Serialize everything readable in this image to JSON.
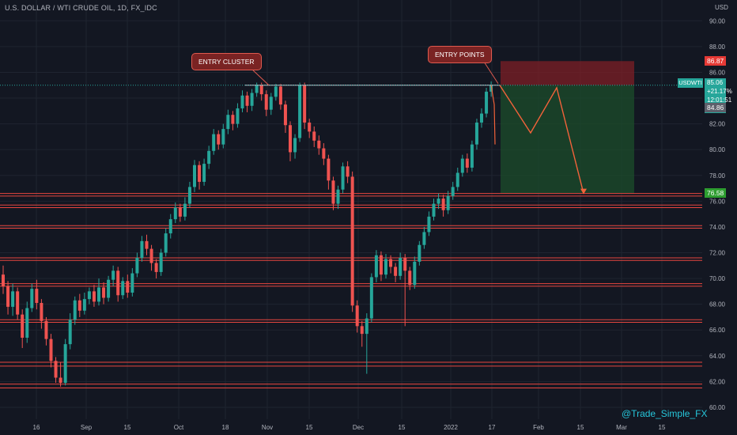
{
  "header": {
    "symbol": "U.S. DOLLAR / WTI CRUDE OIL, 1D, FX_IDC",
    "currency": "USD"
  },
  "annotations": {
    "entry_cluster": "ENTRY CLUSTER",
    "entry_points": "ENTRY POINTS"
  },
  "price_tags": {
    "stop": "86.87",
    "target": "76.58",
    "bid": "84.86"
  },
  "current_price": {
    "symbol": "USDWTI",
    "price": "85.06",
    "change": "+21.17%",
    "countdown": "12:01:51"
  },
  "watermark": "@Trade_Simple_FX",
  "colors": {
    "up": "#26a69a",
    "down": "#ef5350",
    "level_line": "#e8463f",
    "stop_zone": "#7e1f25",
    "target_zone": "#1b4a2a",
    "projection": "#f2623a",
    "background": "#131722"
  },
  "chart_data": {
    "type": "candlestick",
    "title": "U.S. DOLLAR / WTI CRUDE OIL, 1D, FX_IDC",
    "ylim": [
      59.2,
      91.0
    ],
    "y_ticks": [
      60,
      62,
      64,
      66,
      68,
      70,
      72,
      74,
      76,
      78,
      80,
      82,
      84,
      86,
      88,
      90
    ],
    "x_ticks": [
      "16",
      "Sep",
      "15",
      "Oct",
      "18",
      "Nov",
      "15",
      "Dec",
      "15",
      "2022",
      "17",
      "Feb",
      "15",
      "Mar",
      "15"
    ],
    "grid": true,
    "support_resistance_levels": [
      76.6,
      76.4,
      75.7,
      75.5,
      74.1,
      73.9,
      71.6,
      71.4,
      69.6,
      69.4,
      66.8,
      66.6,
      63.5,
      63.2,
      61.8,
      61.5
    ],
    "entry_cluster_level": 85.0,
    "trade_setup": {
      "entry": 85.0,
      "stop": 86.87,
      "target": 76.58
    },
    "projection_path": [
      85.0,
      81.3,
      84.8,
      76.6
    ],
    "candles": [
      [
        70.3,
        69.4,
        71.0,
        68.8
      ],
      [
        69.4,
        67.8,
        69.8,
        67.2
      ],
      [
        67.8,
        69.0,
        69.6,
        67.1
      ],
      [
        69.0,
        67.2,
        69.3,
        66.8
      ],
      [
        67.2,
        65.4,
        67.6,
        64.6
      ],
      [
        65.4,
        67.7,
        68.2,
        65.0
      ],
      [
        67.7,
        69.2,
        69.6,
        67.4
      ],
      [
        69.2,
        68.1,
        69.9,
        67.6
      ],
      [
        68.1,
        66.7,
        68.4,
        66.1
      ],
      [
        66.7,
        65.3,
        67.0,
        64.8
      ],
      [
        65.3,
        63.6,
        65.7,
        63.1
      ],
      [
        63.6,
        62.3,
        63.9,
        61.9
      ],
      [
        62.3,
        61.9,
        63.5,
        61.6
      ],
      [
        61.9,
        64.9,
        65.3,
        61.7
      ],
      [
        64.9,
        66.8,
        67.3,
        64.5
      ],
      [
        66.8,
        68.3,
        68.6,
        66.4
      ],
      [
        68.3,
        67.5,
        68.8,
        67.0
      ],
      [
        67.5,
        68.4,
        68.9,
        67.2
      ],
      [
        68.4,
        69.0,
        69.3,
        68.0
      ],
      [
        69.0,
        68.2,
        69.5,
        67.8
      ],
      [
        68.2,
        69.3,
        70.0,
        67.9
      ],
      [
        69.3,
        68.5,
        69.7,
        68.0
      ],
      [
        68.5,
        69.9,
        70.2,
        68.2
      ],
      [
        69.9,
        70.6,
        71.0,
        69.4
      ],
      [
        70.6,
        68.7,
        70.9,
        68.2
      ],
      [
        68.7,
        69.8,
        70.1,
        68.4
      ],
      [
        69.8,
        68.9,
        70.3,
        68.5
      ],
      [
        68.9,
        70.4,
        70.8,
        68.6
      ],
      [
        70.4,
        71.6,
        72.0,
        70.1
      ],
      [
        71.6,
        72.9,
        73.3,
        71.3
      ],
      [
        72.9,
        72.3,
        73.4,
        71.8
      ],
      [
        72.3,
        71.2,
        72.6,
        70.6
      ],
      [
        71.2,
        70.5,
        71.5,
        70.0
      ],
      [
        70.5,
        72.0,
        72.3,
        70.2
      ],
      [
        72.0,
        73.5,
        73.9,
        71.7
      ],
      [
        73.5,
        74.6,
        75.0,
        73.1
      ],
      [
        74.6,
        75.5,
        75.9,
        74.3
      ],
      [
        75.5,
        74.8,
        75.8,
        74.4
      ],
      [
        74.8,
        75.8,
        76.3,
        74.5
      ],
      [
        75.8,
        77.1,
        77.5,
        75.5
      ],
      [
        77.1,
        78.8,
        79.2,
        76.7
      ],
      [
        78.8,
        77.5,
        79.1,
        76.9
      ],
      [
        77.5,
        78.9,
        79.3,
        77.2
      ],
      [
        78.9,
        79.9,
        80.3,
        78.5
      ],
      [
        79.9,
        81.2,
        81.6,
        79.6
      ],
      [
        81.2,
        80.4,
        81.5,
        80.0
      ],
      [
        80.4,
        81.6,
        82.0,
        80.1
      ],
      [
        81.6,
        82.7,
        83.1,
        81.2
      ],
      [
        82.7,
        82.0,
        83.0,
        81.5
      ],
      [
        82.0,
        83.2,
        83.6,
        81.7
      ],
      [
        83.2,
        84.2,
        84.6,
        82.9
      ],
      [
        84.2,
        83.4,
        84.5,
        82.9
      ],
      [
        83.4,
        84.4,
        84.7,
        83.0
      ],
      [
        84.4,
        85.0,
        85.2,
        84.1
      ],
      [
        85.0,
        84.3,
        85.2,
        83.8
      ],
      [
        84.3,
        83.1,
        84.6,
        82.6
      ],
      [
        83.1,
        84.1,
        84.4,
        82.7
      ],
      [
        84.1,
        84.9,
        85.1,
        83.8
      ],
      [
        84.9,
        83.5,
        85.1,
        83.1
      ],
      [
        83.5,
        81.9,
        83.8,
        81.3
      ],
      [
        81.9,
        79.8,
        82.2,
        79.1
      ],
      [
        79.8,
        80.9,
        81.2,
        79.3
      ],
      [
        80.9,
        85.0,
        85.2,
        80.6
      ],
      [
        85.0,
        82.1,
        85.2,
        81.6
      ],
      [
        82.1,
        81.4,
        82.4,
        80.9
      ],
      [
        81.4,
        80.7,
        81.8,
        80.2
      ],
      [
        80.7,
        80.1,
        81.1,
        79.6
      ],
      [
        80.1,
        79.3,
        80.5,
        78.8
      ],
      [
        79.3,
        77.6,
        79.6,
        76.9
      ],
      [
        77.6,
        75.8,
        77.9,
        75.3
      ],
      [
        75.8,
        76.9,
        77.2,
        75.4
      ],
      [
        76.9,
        78.7,
        79.0,
        76.6
      ],
      [
        78.7,
        77.9,
        79.1,
        77.4
      ],
      [
        77.9,
        67.9,
        78.3,
        67.4
      ],
      [
        67.9,
        66.3,
        68.3,
        65.8
      ],
      [
        66.3,
        65.7,
        66.7,
        64.7
      ],
      [
        65.7,
        66.9,
        67.3,
        62.6
      ],
      [
        66.9,
        70.1,
        70.4,
        66.6
      ],
      [
        70.1,
        71.8,
        72.2,
        69.7
      ],
      [
        71.8,
        70.3,
        72.1,
        69.8
      ],
      [
        70.3,
        71.5,
        71.9,
        70.0
      ],
      [
        71.5,
        70.9,
        71.8,
        70.4
      ],
      [
        70.9,
        70.2,
        71.2,
        69.7
      ],
      [
        70.2,
        71.6,
        72.0,
        69.9
      ],
      [
        71.6,
        70.6,
        71.9,
        66.3
      ],
      [
        70.6,
        69.5,
        70.9,
        69.1
      ],
      [
        69.5,
        71.3,
        71.7,
        69.2
      ],
      [
        71.3,
        72.6,
        72.9,
        71.0
      ],
      [
        72.6,
        73.6,
        74.0,
        72.3
      ],
      [
        73.6,
        74.8,
        75.2,
        73.3
      ],
      [
        74.8,
        75.8,
        76.2,
        74.5
      ],
      [
        75.8,
        76.2,
        76.6,
        75.4
      ],
      [
        76.2,
        75.3,
        76.5,
        74.8
      ],
      [
        75.3,
        76.4,
        76.8,
        75.0
      ],
      [
        76.4,
        77.1,
        77.5,
        76.1
      ],
      [
        77.1,
        78.2,
        78.6,
        76.8
      ],
      [
        78.2,
        79.3,
        79.6,
        77.9
      ],
      [
        79.3,
        78.6,
        79.7,
        78.2
      ],
      [
        78.6,
        80.4,
        80.7,
        78.3
      ],
      [
        80.4,
        82.1,
        82.4,
        80.0
      ],
      [
        82.1,
        82.8,
        83.2,
        81.7
      ],
      [
        82.8,
        84.5,
        84.8,
        82.5
      ],
      [
        84.5,
        85.0,
        85.3,
        84.1
      ]
    ]
  }
}
